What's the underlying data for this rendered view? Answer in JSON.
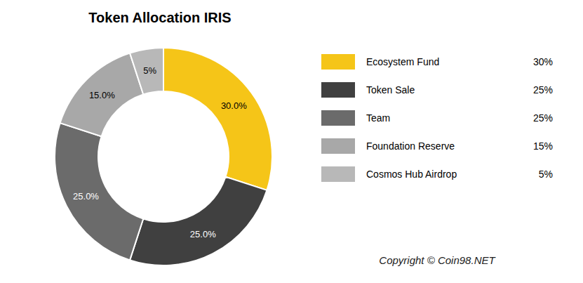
{
  "chart_data": {
    "type": "pie",
    "title": "Token Allocation IRIS",
    "categories": [
      "Ecosystem Fund",
      "Token Sale",
      "Team",
      "Foundation Reserve",
      "Cosmos Hub Airdrop"
    ],
    "values": [
      30,
      25,
      25,
      15,
      5
    ],
    "value_labels": [
      "30.0%",
      "25.0%",
      "25.0%",
      "15.0%",
      "5%"
    ],
    "data_labels": true,
    "colors": [
      "#F5C518",
      "#404040",
      "#6B6B6B",
      "#A8A8A8",
      "#B8B8B8"
    ],
    "legend": "right",
    "legend_value_labels": [
      "30%",
      "25%",
      "25%",
      "15%",
      "5%"
    ],
    "annotations": [
      "Copyright © Coin98.NET"
    ]
  }
}
